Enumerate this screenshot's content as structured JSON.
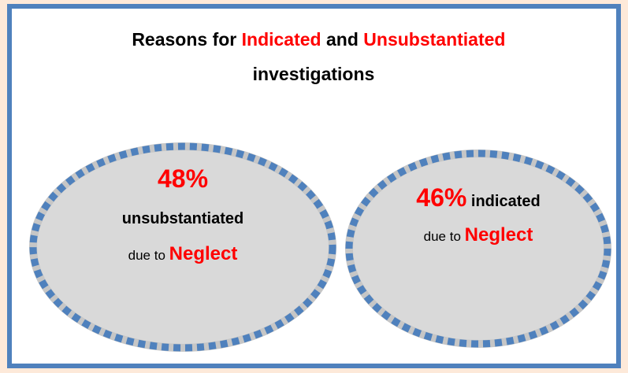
{
  "title": {
    "line1": [
      {
        "text": "Reasons for ",
        "highlight": false
      },
      {
        "text": "Indicated",
        "highlight": true
      },
      {
        "text": " and ",
        "highlight": false
      },
      {
        "text": "Unsubstantiated",
        "highlight": true
      }
    ],
    "line2": "investigations"
  },
  "circles": [
    {
      "percent": "48%",
      "label": "unsubstantiated",
      "prefix": "due to ",
      "reason": "Neglect"
    },
    {
      "percent": "46%",
      "label": " indicated",
      "prefix": "due to ",
      "reason": "Neglect"
    }
  ]
}
